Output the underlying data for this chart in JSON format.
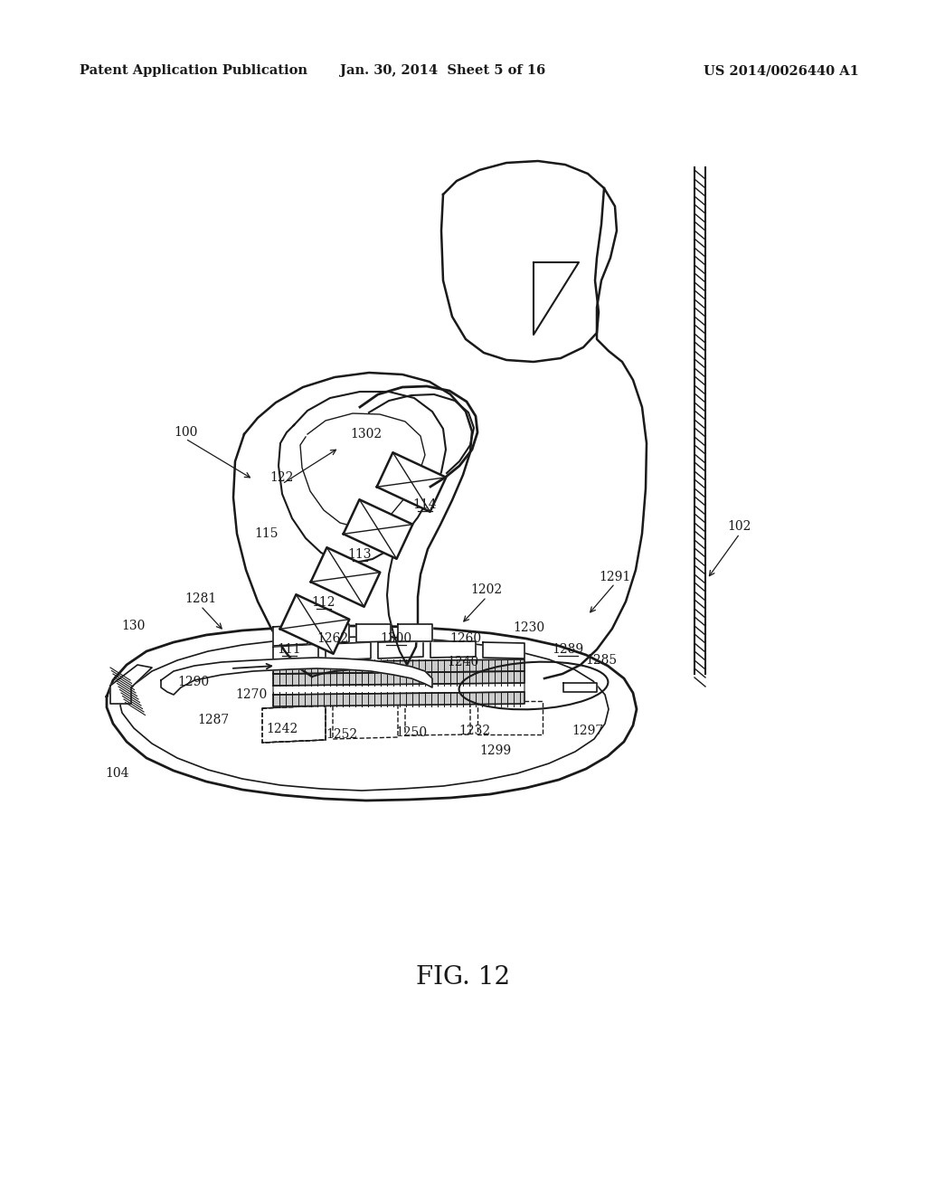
{
  "bg_color": "#ffffff",
  "line_color": "#1a1a1a",
  "header_left": "Patent Application Publication",
  "header_center": "Jan. 30, 2014  Sheet 5 of 16",
  "header_right": "US 2014/0026440 A1",
  "figure_label": "FIG. 12"
}
